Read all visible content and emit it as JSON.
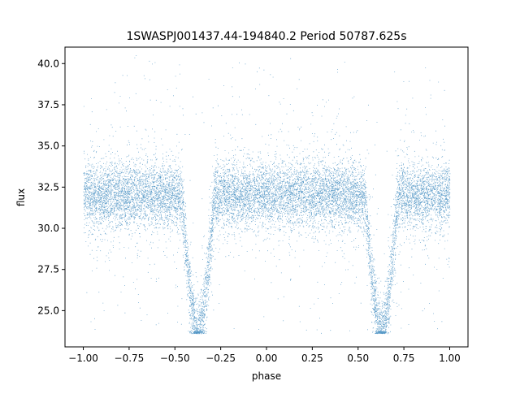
{
  "chart_data": {
    "type": "scatter",
    "title": "1SWASPJ001437.44-194840.2 Period 50787.625s",
    "xlabel": "phase",
    "ylabel": "flux",
    "xlim": [
      -1.1,
      1.1
    ],
    "ylim": [
      22.8,
      41.0
    ],
    "xticks": [
      -1.0,
      -0.75,
      -0.5,
      -0.25,
      0.0,
      0.25,
      0.5,
      0.75,
      1.0
    ],
    "xtick_labels": [
      "−1.00",
      "−0.75",
      "−0.50",
      "−0.25",
      "0.00",
      "0.25",
      "0.50",
      "0.75",
      "1.00"
    ],
    "yticks": [
      25.0,
      27.5,
      30.0,
      32.5,
      35.0,
      37.5,
      40.0
    ],
    "ytick_labels": [
      "25.0",
      "27.5",
      "30.0",
      "32.5",
      "35.0",
      "37.5",
      "40.0"
    ],
    "grid": false,
    "legend": "none",
    "marker_color": "#1f77b4",
    "series": [
      {
        "phase_range": [
          -1.0,
          1.0
        ],
        "baseline_flux": 32.0,
        "core_scatter_range": [
          30.0,
          34.5
        ],
        "outlier_range": [
          23.6,
          40.5
        ],
        "eclipses": [
          {
            "center_phase": -0.375,
            "min_flux": 23.6,
            "ingress_width": 0.09
          },
          {
            "center_phase": 0.625,
            "min_flux": 23.6,
            "ingress_width": 0.09
          }
        ]
      }
    ]
  }
}
